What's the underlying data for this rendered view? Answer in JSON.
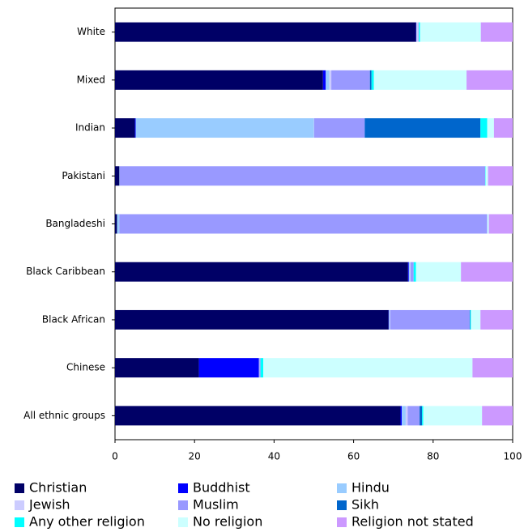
{
  "chart_data": {
    "type": "stacked-barh",
    "categories": [
      "White",
      "Mixed",
      "Indian",
      "Pakistani",
      "Bangladeshi",
      "Black Caribbean",
      "Black African",
      "Chinese",
      "All ethnic groups"
    ],
    "series": [
      {
        "name": "Christian",
        "color": "#000066",
        "values": [
          75.7,
          52.3,
          5.0,
          1.1,
          0.5,
          73.7,
          68.8,
          21.1,
          71.8
        ]
      },
      {
        "name": "Buddhist",
        "color": "#0000ff",
        "values": [
          0.1,
          0.7,
          0.2,
          0,
          0,
          0.2,
          0.1,
          15.1,
          0.3
        ]
      },
      {
        "name": "Hindu",
        "color": "#99ccff",
        "values": [
          0,
          0.9,
          44.8,
          0.1,
          0.6,
          0.3,
          0.2,
          0.1,
          1.0
        ]
      },
      {
        "name": "Jewish",
        "color": "#ccccff",
        "values": [
          0.5,
          0.5,
          0.1,
          0,
          0,
          0.1,
          0.1,
          0,
          0.5
        ]
      },
      {
        "name": "Muslim",
        "color": "#9999ff",
        "values": [
          0.1,
          9.7,
          12.7,
          91.9,
          92.5,
          0.8,
          20.0,
          0.3,
          3.0
        ]
      },
      {
        "name": "Sikh",
        "color": "#0066cc",
        "values": [
          0,
          0.4,
          29.1,
          0,
          0,
          0,
          0.1,
          0,
          0.6
        ]
      },
      {
        "name": "Any other religion",
        "color": "#00ffff",
        "values": [
          0.3,
          0.6,
          1.7,
          0.1,
          0,
          0.6,
          0.2,
          0.7,
          0.3
        ]
      },
      {
        "name": "No religion",
        "color": "#ccffff",
        "values": [
          15.3,
          23.3,
          1.7,
          0.6,
          0.4,
          11.3,
          2.4,
          52.6,
          14.8
        ]
      },
      {
        "name": "Religion not stated",
        "color": "#cc99ff",
        "values": [
          8.0,
          11.6,
          4.7,
          6.2,
          6.0,
          13.0,
          8.1,
          10.1,
          7.7
        ]
      }
    ],
    "xlim": [
      0,
      100
    ],
    "xticks": [
      0,
      20,
      40,
      60,
      80,
      100
    ]
  }
}
